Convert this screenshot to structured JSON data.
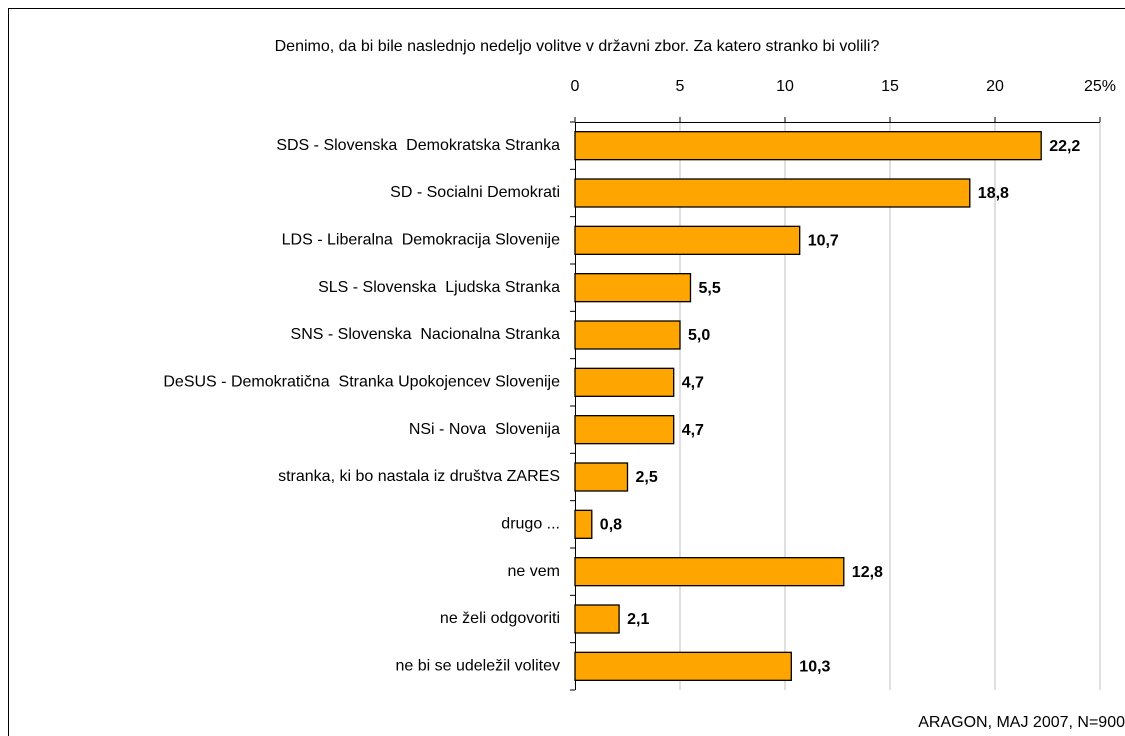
{
  "chart_data": {
    "type": "bar",
    "orientation": "horizontal",
    "title": "Denimo, da bi bile naslednjo nedeljo volitve v državni zbor. Za katero stranko bi volili?",
    "footnote": "ARAGON, MAJ 2007, N=900",
    "categories": [
      "SDS - Slovenska  Demokratska Stranka",
      "SD - Socialni Demokrati",
      "LDS - Liberalna  Demokracija Slovenije",
      "SLS - Slovenska  Ljudska Stranka",
      "SNS - Slovenska  Nacionalna Stranka",
      "DeSUS - Demokratična  Stranka Upokojencev Slovenije",
      "NSi - Nova  Slovenija",
      "stranka, ki bo nastala iz društva ZARES",
      "drugo ...",
      "ne vem",
      "ne želi odgovoriti",
      "ne bi se udeležil volitev"
    ],
    "values": [
      22.2,
      18.8,
      10.7,
      5.5,
      5.0,
      4.7,
      4.7,
      2.5,
      0.8,
      12.8,
      2.1,
      10.3
    ],
    "value_labels": [
      "22,2",
      "18,8",
      "10,7",
      "5,5",
      "5,0",
      "4,7",
      "4,7",
      "2,5",
      "0,8",
      "12,8",
      "2,1",
      "10,3"
    ],
    "color": "#FFA500",
    "xlim": [
      0,
      25
    ],
    "xticks": [
      0,
      5,
      10,
      15,
      20,
      {
        "value": 25,
        "label": "25%"
      }
    ],
    "grid": true
  }
}
